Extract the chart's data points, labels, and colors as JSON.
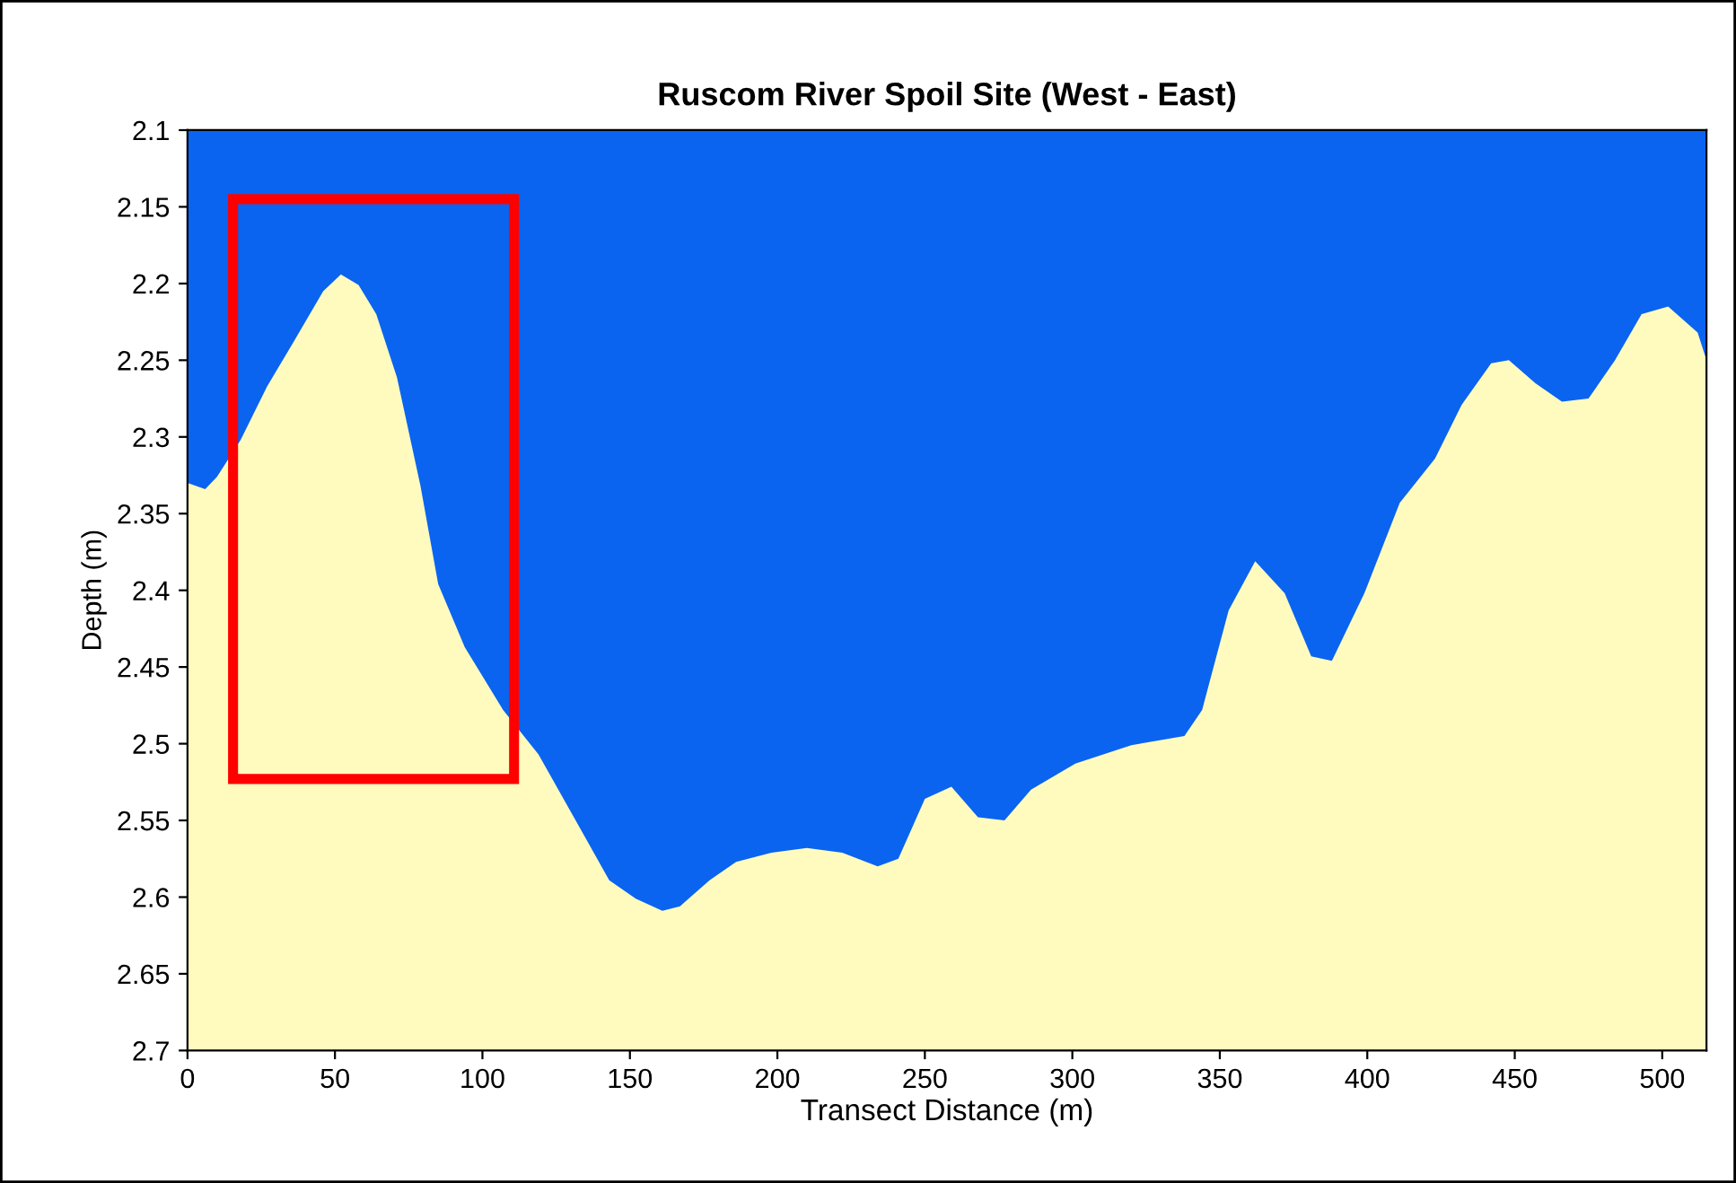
{
  "chart_data": {
    "type": "area",
    "title": "Ruscom River Spoil Site (West - East)",
    "xlabel": "Transect Distance (m)",
    "ylabel": "Depth (m)",
    "x": [
      0,
      6,
      10,
      18,
      27,
      36,
      46,
      52,
      58,
      64,
      71,
      79,
      85,
      94,
      107,
      119,
      131,
      143,
      152,
      161,
      167,
      177,
      186,
      198,
      210,
      222,
      234,
      241,
      250,
      259,
      268,
      277,
      286,
      301,
      320,
      338,
      344,
      353,
      362,
      372,
      381,
      388,
      399,
      411,
      423,
      432,
      442,
      448,
      457,
      466,
      475,
      484,
      493,
      502,
      512,
      515
    ],
    "series": [
      {
        "color": "#0a64f0",
        "values": [
          2.33,
          2.334,
          2.326,
          2.302,
          2.267,
          2.238,
          2.205,
          2.194,
          2.201,
          2.22,
          2.261,
          2.332,
          2.396,
          2.437,
          2.478,
          2.507,
          2.548,
          2.589,
          2.601,
          2.609,
          2.606,
          2.589,
          2.577,
          2.571,
          2.568,
          2.571,
          2.58,
          2.575,
          2.536,
          2.528,
          2.548,
          2.55,
          2.53,
          2.513,
          2.501,
          2.495,
          2.478,
          2.413,
          2.381,
          2.402,
          2.443,
          2.446,
          2.402,
          2.343,
          2.314,
          2.279,
          2.252,
          2.25,
          2.265,
          2.277,
          2.275,
          2.25,
          2.22,
          2.215,
          2.232,
          2.25
        ]
      }
    ],
    "bands": [
      {
        "axis": "y",
        "from": 2.1,
        "to": 2.7,
        "color": "#fffbbf"
      }
    ],
    "xlim": [
      0,
      515
    ],
    "ylim": [
      2.7,
      2.1
    ],
    "xticks": [
      0,
      50,
      100,
      150,
      200,
      250,
      300,
      350,
      400,
      450,
      500
    ],
    "yticks": [
      2.1,
      2.15,
      2.2,
      2.25,
      2.3,
      2.35,
      2.4,
      2.45,
      2.5,
      2.55,
      2.6,
      2.65,
      2.7
    ],
    "grid": false,
    "legend": false
  }
}
